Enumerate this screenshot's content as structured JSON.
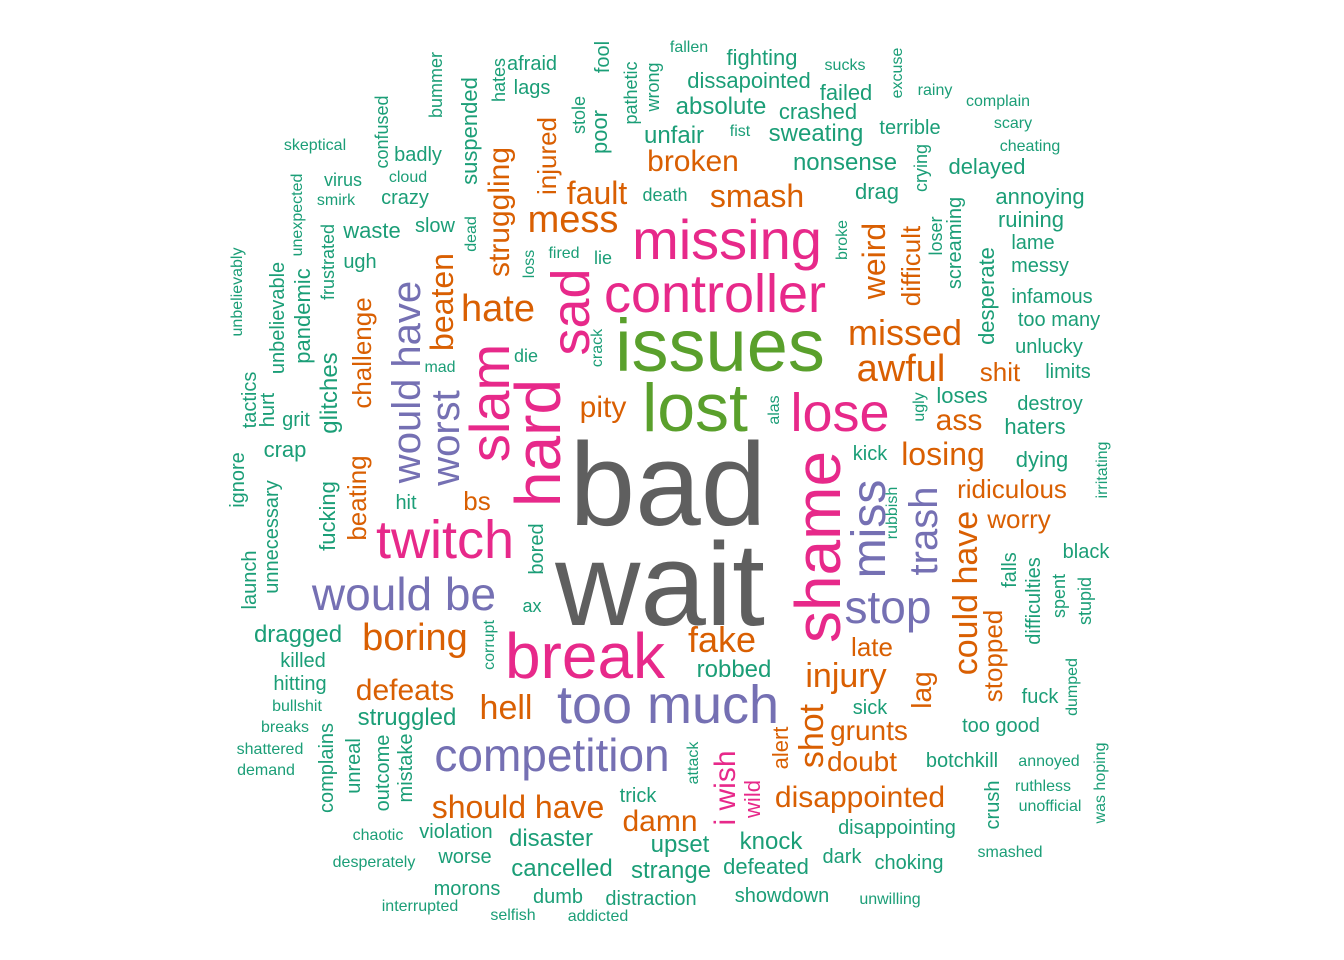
{
  "palette": {
    "gray": "#5f5f5f",
    "green": "#5aa02c",
    "magenta": "#e7298a",
    "purple": "#7570b3",
    "orange": "#d95f02",
    "teal": "#1b9e77"
  },
  "words": [
    {
      "text": "bad",
      "color": "gray",
      "tier": 10
    },
    {
      "text": "wait",
      "color": "gray",
      "tier": 10
    },
    {
      "text": "issues",
      "color": "green",
      "tier": 8
    },
    {
      "text": "lost",
      "color": "green",
      "tier": 8
    },
    {
      "text": "break",
      "color": "magenta",
      "tier": 7
    },
    {
      "text": "hard",
      "color": "magenta",
      "tier": 7
    },
    {
      "text": "shame",
      "color": "magenta",
      "tier": 7
    },
    {
      "text": "missing",
      "color": "magenta",
      "tier": 6
    },
    {
      "text": "controller",
      "color": "magenta",
      "tier": 6
    },
    {
      "text": "lose",
      "color": "magenta",
      "tier": 6
    },
    {
      "text": "slam",
      "color": "magenta",
      "tier": 6
    },
    {
      "text": "twitch",
      "color": "magenta",
      "tier": 6
    },
    {
      "text": "sad",
      "color": "magenta",
      "tier": 6
    },
    {
      "text": "too much",
      "color": "purple",
      "tier": 6
    },
    {
      "text": "competition",
      "color": "purple",
      "tier": 5
    },
    {
      "text": "would be",
      "color": "purple",
      "tier": 5
    },
    {
      "text": "miss",
      "color": "purple",
      "tier": 5
    },
    {
      "text": "stop",
      "color": "purple",
      "tier": 5
    },
    {
      "text": "would have",
      "color": "purple",
      "tier": 5
    },
    {
      "text": "worst",
      "color": "purple",
      "tier": 5
    },
    {
      "text": "trash",
      "color": "purple",
      "tier": 5
    },
    {
      "text": "mess",
      "color": "orange",
      "tier": 4
    },
    {
      "text": "hate",
      "color": "orange",
      "tier": 4
    },
    {
      "text": "missed",
      "color": "orange",
      "tier": 4
    },
    {
      "text": "awful",
      "color": "orange",
      "tier": 4
    },
    {
      "text": "boring",
      "color": "orange",
      "tier": 4
    },
    {
      "text": "fake",
      "color": "orange",
      "tier": 4
    },
    {
      "text": "injury",
      "color": "orange",
      "tier": 4
    },
    {
      "text": "could have",
      "color": "orange",
      "tier": 4
    },
    {
      "text": "beaten",
      "color": "orange",
      "tier": 4
    },
    {
      "text": "shot",
      "color": "orange",
      "tier": 4
    },
    {
      "text": "should have",
      "color": "orange",
      "tier": 3
    },
    {
      "text": "disappointed",
      "color": "orange",
      "tier": 3
    },
    {
      "text": "damn",
      "color": "orange",
      "tier": 3
    },
    {
      "text": "i wish",
      "color": "magenta",
      "tier": 3
    },
    {
      "text": "hell",
      "color": "orange",
      "tier": 3
    },
    {
      "text": "defeats",
      "color": "orange",
      "tier": 3
    },
    {
      "text": "smash",
      "color": "orange",
      "tier": 3
    },
    {
      "text": "fault",
      "color": "orange",
      "tier": 3
    },
    {
      "text": "broken",
      "color": "orange",
      "tier": 3
    },
    {
      "text": "losing",
      "color": "orange",
      "tier": 3
    },
    {
      "text": "ridiculous",
      "color": "orange",
      "tier": 2
    },
    {
      "text": "pity",
      "color": "orange",
      "tier": 3
    },
    {
      "text": "weird",
      "color": "orange",
      "tier": 3
    },
    {
      "text": "ass",
      "color": "orange",
      "tier": 3
    },
    {
      "text": "grunts",
      "color": "orange",
      "tier": 3
    },
    {
      "text": "doubt",
      "color": "orange",
      "tier": 2
    },
    {
      "text": "struggling",
      "color": "orange",
      "tier": 3
    },
    {
      "text": "challenge",
      "color": "orange",
      "tier": 2
    },
    {
      "text": "injured",
      "color": "orange",
      "tier": 2
    },
    {
      "text": "beating",
      "color": "orange",
      "tier": 2
    },
    {
      "text": "difficult",
      "color": "orange",
      "tier": 2
    },
    {
      "text": "stopped",
      "color": "orange",
      "tier": 2
    },
    {
      "text": "worry",
      "color": "orange",
      "tier": 2
    },
    {
      "text": "shit",
      "color": "orange",
      "tier": 2
    },
    {
      "text": "bs",
      "color": "orange",
      "tier": 2
    },
    {
      "text": "late",
      "color": "orange",
      "tier": 2
    },
    {
      "text": "lag",
      "color": "orange",
      "tier": 2
    },
    {
      "text": "wild",
      "color": "magenta",
      "tier": 2
    },
    {
      "text": "alert",
      "color": "orange",
      "tier": 2
    },
    {
      "text": "glitches",
      "color": "teal",
      "tier": 2
    },
    {
      "text": "struggled",
      "color": "teal",
      "tier": 2
    },
    {
      "text": "disaster",
      "color": "teal",
      "tier": 2
    },
    {
      "text": "upset",
      "color": "teal",
      "tier": 2
    },
    {
      "text": "knock",
      "color": "teal",
      "tier": 2
    },
    {
      "text": "cancelled",
      "color": "teal",
      "tier": 2
    },
    {
      "text": "strange",
      "color": "teal",
      "tier": 2
    },
    {
      "text": "defeated",
      "color": "teal",
      "tier": 1
    },
    {
      "text": "robbed",
      "color": "teal",
      "tier": 2
    },
    {
      "text": "dragged",
      "color": "teal",
      "tier": 2
    },
    {
      "text": "nonsense",
      "color": "teal",
      "tier": 2
    },
    {
      "text": "sweating",
      "color": "teal",
      "tier": 2
    },
    {
      "text": "absolute",
      "color": "teal",
      "tier": 2
    },
    {
      "text": "unfair",
      "color": "teal",
      "tier": 2
    },
    {
      "text": "fighting",
      "color": "teal",
      "tier": 1
    },
    {
      "text": "dissapointed",
      "color": "teal",
      "tier": 1
    },
    {
      "text": "crashed",
      "color": "teal",
      "tier": 1
    },
    {
      "text": "failed",
      "color": "teal",
      "tier": 1
    },
    {
      "text": "terrible",
      "color": "teal",
      "tier": 1
    },
    {
      "text": "drag",
      "color": "teal",
      "tier": 1
    },
    {
      "text": "delayed",
      "color": "teal",
      "tier": 1
    },
    {
      "text": "annoying",
      "color": "teal",
      "tier": 1
    },
    {
      "text": "ruining",
      "color": "teal",
      "tier": 1
    },
    {
      "text": "lame",
      "color": "teal",
      "tier": 1
    },
    {
      "text": "messy",
      "color": "teal",
      "tier": 1
    },
    {
      "text": "infamous",
      "color": "teal",
      "tier": 1
    },
    {
      "text": "too many",
      "color": "teal",
      "tier": 1
    },
    {
      "text": "unlucky",
      "color": "teal",
      "tier": 1
    },
    {
      "text": "limits",
      "color": "teal",
      "tier": 1
    },
    {
      "text": "destroy",
      "color": "teal",
      "tier": 1
    },
    {
      "text": "loses",
      "color": "teal",
      "tier": 1
    },
    {
      "text": "haters",
      "color": "teal",
      "tier": 1
    },
    {
      "text": "dying",
      "color": "teal",
      "tier": 1
    },
    {
      "text": "black",
      "color": "teal",
      "tier": 1
    },
    {
      "text": "kick",
      "color": "teal",
      "tier": 1
    },
    {
      "text": "sick",
      "color": "teal",
      "tier": 1
    },
    {
      "text": "too good",
      "color": "teal",
      "tier": 1
    },
    {
      "text": "fuck",
      "color": "teal",
      "tier": 1
    },
    {
      "text": "botchkill",
      "color": "teal",
      "tier": 1
    },
    {
      "text": "annoyed",
      "color": "teal",
      "tier": 0
    },
    {
      "text": "ruthless",
      "color": "teal",
      "tier": 0
    },
    {
      "text": "unofficial",
      "color": "teal",
      "tier": 0
    },
    {
      "text": "disappointing",
      "color": "teal",
      "tier": 1
    },
    {
      "text": "dark",
      "color": "teal",
      "tier": 1
    },
    {
      "text": "choking",
      "color": "teal",
      "tier": 1
    },
    {
      "text": "smashed",
      "color": "teal",
      "tier": 0
    },
    {
      "text": "showdown",
      "color": "teal",
      "tier": 1
    },
    {
      "text": "unwilling",
      "color": "teal",
      "tier": 0
    },
    {
      "text": "distraction",
      "color": "teal",
      "tier": 1
    },
    {
      "text": "dumb",
      "color": "teal",
      "tier": 1
    },
    {
      "text": "addicted",
      "color": "teal",
      "tier": 0
    },
    {
      "text": "selfish",
      "color": "teal",
      "tier": 0
    },
    {
      "text": "morons",
      "color": "teal",
      "tier": 1
    },
    {
      "text": "interrupted",
      "color": "teal",
      "tier": 0
    },
    {
      "text": "worse",
      "color": "teal",
      "tier": 1
    },
    {
      "text": "violation",
      "color": "teal",
      "tier": 1
    },
    {
      "text": "chaotic",
      "color": "teal",
      "tier": 0
    },
    {
      "text": "desperately",
      "color": "teal",
      "tier": 0
    },
    {
      "text": "trick",
      "color": "teal",
      "tier": 1
    },
    {
      "text": "crazy",
      "color": "teal",
      "tier": 1
    },
    {
      "text": "badly",
      "color": "teal",
      "tier": 1
    },
    {
      "text": "virus",
      "color": "teal",
      "tier": 1
    },
    {
      "text": "waste",
      "color": "teal",
      "tier": 1
    },
    {
      "text": "slow",
      "color": "teal",
      "tier": 1
    },
    {
      "text": "ugh",
      "color": "teal",
      "tier": 1
    },
    {
      "text": "crap",
      "color": "teal",
      "tier": 1
    },
    {
      "text": "grit",
      "color": "teal",
      "tier": 1
    },
    {
      "text": "hit",
      "color": "teal",
      "tier": 1
    },
    {
      "text": "killed",
      "color": "teal",
      "tier": 1
    },
    {
      "text": "hitting",
      "color": "teal",
      "tier": 1
    },
    {
      "text": "bullshit",
      "color": "teal",
      "tier": 0
    },
    {
      "text": "breaks",
      "color": "teal",
      "tier": 0
    },
    {
      "text": "shattered",
      "color": "teal",
      "tier": 0
    },
    {
      "text": "demand",
      "color": "teal",
      "tier": 0
    },
    {
      "text": "skeptical",
      "color": "teal",
      "tier": 0
    },
    {
      "text": "cloud",
      "color": "teal",
      "tier": 0
    },
    {
      "text": "smirk",
      "color": "teal",
      "tier": 0
    },
    {
      "text": "afraid",
      "color": "teal",
      "tier": 1
    },
    {
      "text": "lags",
      "color": "teal",
      "tier": 1
    },
    {
      "text": "fallen",
      "color": "teal",
      "tier": 0
    },
    {
      "text": "sucks",
      "color": "teal",
      "tier": 0
    },
    {
      "text": "rainy",
      "color": "teal",
      "tier": 0
    },
    {
      "text": "complain",
      "color": "teal",
      "tier": 0
    },
    {
      "text": "scary",
      "color": "teal",
      "tier": 0
    },
    {
      "text": "cheating",
      "color": "teal",
      "tier": 0
    },
    {
      "text": "fist",
      "color": "teal",
      "tier": 0
    },
    {
      "text": "death",
      "color": "teal",
      "tier": 0
    },
    {
      "text": "fired",
      "color": "teal",
      "tier": 0
    },
    {
      "text": "lie",
      "color": "teal",
      "tier": 0
    },
    {
      "text": "die",
      "color": "teal",
      "tier": 0
    },
    {
      "text": "mad",
      "color": "teal",
      "tier": 0
    },
    {
      "text": "ax",
      "color": "teal",
      "tier": 0
    },
    {
      "text": "spent",
      "color": "teal",
      "tier": 0
    },
    {
      "text": "pandemic",
      "color": "teal",
      "tier": 1
    },
    {
      "text": "unbelievable",
      "color": "teal",
      "tier": 1
    },
    {
      "text": "unbelievably",
      "color": "teal",
      "tier": 0
    },
    {
      "text": "unexpected",
      "color": "teal",
      "tier": 0
    },
    {
      "text": "frustrated",
      "color": "teal",
      "tier": 0
    },
    {
      "text": "confused",
      "color": "teal",
      "tier": 0
    },
    {
      "text": "bummer",
      "color": "teal",
      "tier": 0
    },
    {
      "text": "suspended",
      "color": "teal",
      "tier": 1
    },
    {
      "text": "hates",
      "color": "teal",
      "tier": 0
    },
    {
      "text": "stole",
      "color": "teal",
      "tier": 0
    },
    {
      "text": "poor",
      "color": "teal",
      "tier": 1
    },
    {
      "text": "fool",
      "color": "teal",
      "tier": 0
    },
    {
      "text": "pathetic",
      "color": "teal",
      "tier": 0
    },
    {
      "text": "wrong",
      "color": "teal",
      "tier": 0
    },
    {
      "text": "excuse",
      "color": "teal",
      "tier": 0
    },
    {
      "text": "crying",
      "color": "teal",
      "tier": 0
    },
    {
      "text": "screaming",
      "color": "teal",
      "tier": 1
    },
    {
      "text": "desperate",
      "color": "teal",
      "tier": 1
    },
    {
      "text": "loser",
      "color": "teal",
      "tier": 0
    },
    {
      "text": "broke",
      "color": "teal",
      "tier": 0
    },
    {
      "text": "dead",
      "color": "teal",
      "tier": 0
    },
    {
      "text": "loss",
      "color": "teal",
      "tier": 0
    },
    {
      "text": "crack",
      "color": "teal",
      "tier": 0
    },
    {
      "text": "alas",
      "color": "teal",
      "tier": 0
    },
    {
      "text": "ugly",
      "color": "teal",
      "tier": 0
    },
    {
      "text": "rubbish",
      "color": "teal",
      "tier": 0
    },
    {
      "text": "irritating",
      "color": "teal",
      "tier": 0
    },
    {
      "text": "falls",
      "color": "teal",
      "tier": 1
    },
    {
      "text": "difficulties",
      "color": "teal",
      "tier": 1
    },
    {
      "text": "stupid",
      "color": "teal",
      "tier": 0
    },
    {
      "text": "dumped",
      "color": "teal",
      "tier": 0
    },
    {
      "text": "was hoping",
      "color": "teal",
      "tier": 0
    },
    {
      "text": "crush",
      "color": "teal",
      "tier": 1
    },
    {
      "text": "attack",
      "color": "teal",
      "tier": 0
    },
    {
      "text": "mistake",
      "color": "teal",
      "tier": 1
    },
    {
      "text": "outcome",
      "color": "teal",
      "tier": 1
    },
    {
      "text": "unreal",
      "color": "teal",
      "tier": 1
    },
    {
      "text": "complains",
      "color": "teal",
      "tier": 1
    },
    {
      "text": "corrupt",
      "color": "teal",
      "tier": 0
    },
    {
      "text": "bored",
      "color": "teal",
      "tier": 1
    },
    {
      "text": "fucking",
      "color": "teal",
      "tier": 1
    },
    {
      "text": "unnecessary",
      "color": "teal",
      "tier": 1
    },
    {
      "text": "launch",
      "color": "teal",
      "tier": 1
    },
    {
      "text": "ignore",
      "color": "teal",
      "tier": 1
    },
    {
      "text": "tactics",
      "color": "teal",
      "tier": 1
    },
    {
      "text": "hurt",
      "color": "teal",
      "tier": 1
    }
  ]
}
